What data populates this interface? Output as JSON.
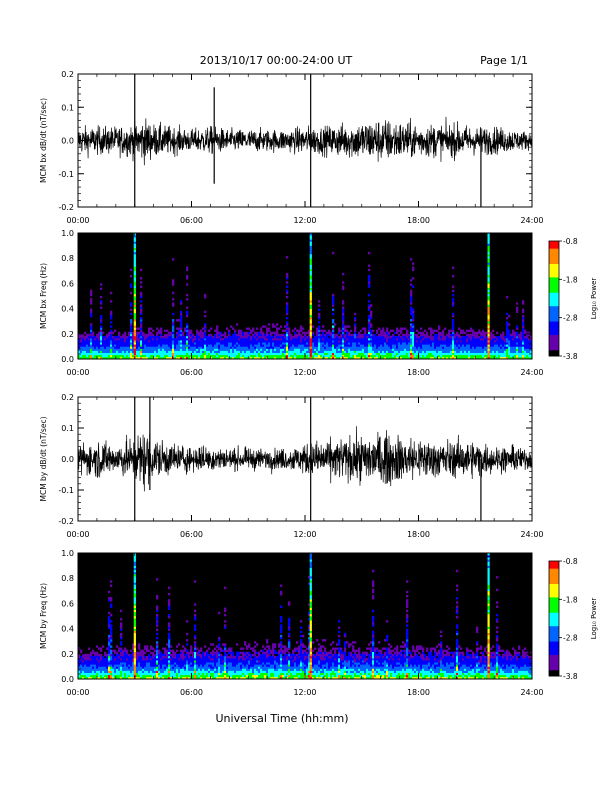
{
  "header": {
    "title": "2013/10/17  00:00-24:00 UT",
    "page": "Page 1/1"
  },
  "footer": {
    "xlabel": "Universal Time (hh:mm)"
  },
  "colorbar": {
    "label": "Log₁₀ Power",
    "ticks": [
      "-0.8",
      "-1.8",
      "-2.8",
      "-3.8"
    ],
    "colors": [
      "#ff0000",
      "#ff8800",
      "#ffff00",
      "#00ff00",
      "#00ffff",
      "#0066ff",
      "#0000ff",
      "#6600aa",
      "#000000"
    ]
  },
  "chart_data": [
    {
      "type": "line",
      "title": "",
      "ylabel": "MCM bx dB/dt (nT/sec)",
      "xlabel": "",
      "xlim": [
        "00:00",
        "24:00"
      ],
      "ylim": [
        -0.2,
        0.2
      ],
      "xticks": [
        "00:00",
        "06:00",
        "12:00",
        "18:00",
        "24:00"
      ],
      "yticks": [
        "-0.2",
        "-0.1",
        "0.0",
        "0.1",
        "0.2"
      ],
      "series": [
        {
          "values_note": "noise envelope approx",
          "x_hours": [
            0,
            1,
            2,
            3,
            3.5,
            4,
            5,
            6,
            7,
            8,
            9,
            10,
            11,
            12,
            13,
            14,
            15,
            16,
            17,
            18,
            19,
            20,
            21,
            22,
            23,
            24
          ],
          "envelope": [
            0.05,
            0.05,
            0.05,
            0.06,
            0.08,
            0.06,
            0.05,
            0.04,
            0.05,
            0.04,
            0.04,
            0.04,
            0.04,
            0.05,
            0.05,
            0.06,
            0.07,
            0.08,
            0.07,
            0.06,
            0.06,
            0.06,
            0.05,
            0.05,
            0.04,
            0.03
          ]
        }
      ],
      "spikes": [
        {
          "x": 3.0,
          "ymin": -0.2,
          "ymax": 0.2
        },
        {
          "x": 12.3,
          "ymin": -0.2,
          "ymax": 0.2
        },
        {
          "x": 7.2,
          "ymin": -0.13,
          "ymax": 0.16
        },
        {
          "x": 21.3,
          "ymin": -0.2,
          "ymax": 0.0
        }
      ]
    },
    {
      "type": "heatmap",
      "title": "",
      "ylabel": "MCM bx Freq (Hz)",
      "xlabel": "",
      "xlim": [
        "00:00",
        "24:00"
      ],
      "ylim": [
        0.0,
        1.0
      ],
      "xticks": [
        "00:00",
        "06:00",
        "12:00",
        "18:00",
        "24:00"
      ],
      "yticks": [
        "0.0",
        "0.2",
        "0.4",
        "0.6",
        "0.8",
        "1.0"
      ],
      "zlim": [
        -3.8,
        -0.8
      ],
      "vertical_lines_hours": [
        3.0,
        12.3,
        21.7
      ]
    },
    {
      "type": "line",
      "title": "",
      "ylabel": "MCM by dB/dt (nT/sec)",
      "xlabel": "",
      "xlim": [
        "00:00",
        "24:00"
      ],
      "ylim": [
        -0.2,
        0.2
      ],
      "xticks": [
        "00:00",
        "06:00",
        "12:00",
        "18:00",
        "24:00"
      ],
      "yticks": [
        "-0.2",
        "-0.1",
        "0.0",
        "0.1",
        "0.2"
      ],
      "series": [
        {
          "values_note": "noise envelope approx",
          "x_hours": [
            0,
            1,
            2,
            3,
            3.5,
            4,
            5,
            6,
            7,
            8,
            9,
            10,
            11,
            12,
            13,
            14,
            15,
            16,
            17,
            18,
            19,
            20,
            21,
            22,
            23,
            24
          ],
          "envelope": [
            0.06,
            0.07,
            0.06,
            0.08,
            0.12,
            0.08,
            0.06,
            0.05,
            0.05,
            0.04,
            0.04,
            0.04,
            0.04,
            0.06,
            0.07,
            0.08,
            0.09,
            0.1,
            0.09,
            0.08,
            0.07,
            0.07,
            0.07,
            0.05,
            0.05,
            0.04
          ]
        }
      ],
      "spikes": [
        {
          "x": 3.0,
          "ymin": -0.2,
          "ymax": 0.2
        },
        {
          "x": 12.3,
          "ymin": -0.2,
          "ymax": 0.2
        },
        {
          "x": 3.8,
          "ymin": -0.1,
          "ymax": 0.2
        },
        {
          "x": 21.3,
          "ymin": -0.2,
          "ymax": 0.0
        }
      ]
    },
    {
      "type": "heatmap",
      "title": "",
      "ylabel": "MCM by Freq (Hz)",
      "xlabel": "",
      "xlim": [
        "00:00",
        "24:00"
      ],
      "ylim": [
        0.0,
        1.0
      ],
      "xticks": [
        "00:00",
        "06:00",
        "12:00",
        "18:00",
        "24:00"
      ],
      "yticks": [
        "0.0",
        "0.2",
        "0.4",
        "0.6",
        "0.8",
        "1.0"
      ],
      "zlim": [
        -3.8,
        -0.8
      ],
      "vertical_lines_hours": [
        3.0,
        12.3,
        21.7
      ]
    }
  ]
}
